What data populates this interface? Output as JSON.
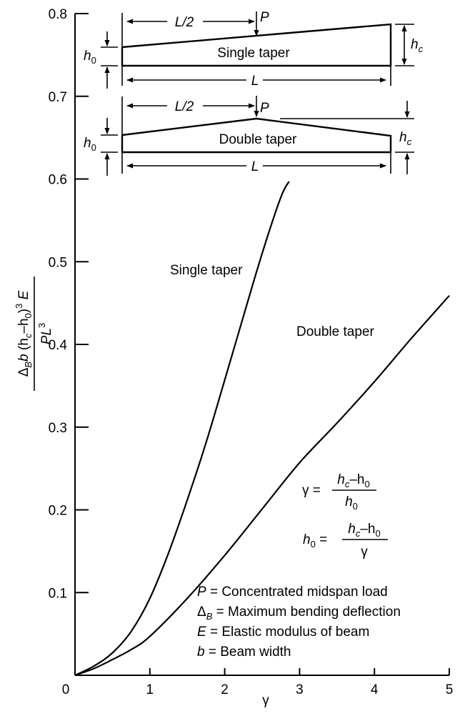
{
  "chart_data": {
    "type": "line",
    "xlabel": "γ",
    "ylabel_parts": {
      "delta": "Δ",
      "sub_B": "B",
      "b": "b",
      "paren_open": " (h",
      "sub_c": "c",
      "minus_h": "–h",
      "sub_0": "0",
      "paren_close": ")",
      "cube": "3",
      "E": " E",
      "denominator": "PL",
      "den_exp": "3"
    },
    "xlim": [
      0,
      5
    ],
    "ylim": [
      0,
      0.8
    ],
    "x_ticks": [
      0,
      1,
      2,
      3,
      4,
      5
    ],
    "x_tick_labels": [
      "0",
      "1",
      "2",
      "3",
      "4",
      "5"
    ],
    "y_ticks": [
      0.1,
      0.2,
      0.3,
      0.4,
      0.5,
      0.6,
      0.7,
      0.8
    ],
    "y_tick_labels": [
      "0.1",
      "0.2",
      "0.3",
      "0.4",
      "0.5",
      "0.6",
      "0.7",
      "0.8"
    ],
    "series": [
      {
        "name": "Single taper",
        "x": [
          0,
          0.25,
          0.5,
          0.75,
          1.0,
          1.25,
          1.5,
          1.75,
          2.0,
          2.25,
          2.5,
          2.75,
          2.86
        ],
        "y": [
          0,
          0.011,
          0.027,
          0.053,
          0.093,
          0.148,
          0.212,
          0.281,
          0.357,
          0.434,
          0.51,
          0.578,
          0.597
        ]
      },
      {
        "name": "Double taper",
        "x": [
          0,
          0.25,
          0.5,
          0.75,
          1.0,
          1.5,
          2.0,
          2.5,
          3.0,
          3.5,
          4.0,
          4.5,
          5.0
        ],
        "y": [
          0,
          0.008,
          0.019,
          0.031,
          0.047,
          0.093,
          0.145,
          0.201,
          0.257,
          0.305,
          0.355,
          0.408,
          0.459
        ]
      }
    ],
    "annotations": {
      "gamma_eq": {
        "lhs": "γ =",
        "num_h": "h",
        "num_c": "c",
        "num_minus": "–h",
        "num_0": "0",
        "den_h": "h",
        "den_0": "0"
      },
      "h0_eq": {
        "lhs_h": "h",
        "lhs_0": "0",
        "eq": " =",
        "num_h": "h",
        "num_c": "c",
        "num_minus": "–h",
        "num_0": "0",
        "den": "γ"
      },
      "legend_lines": [
        {
          "sym": "P",
          "sub": "",
          "text": " = Concentrated midspan load"
        },
        {
          "sym": "Δ",
          "sub": "B",
          "text": " = Maximum bending deflection"
        },
        {
          "sym": "E",
          "sub": "",
          "text": " = Elastic modulus of beam"
        },
        {
          "sym": "b",
          "sub": "",
          "text": " = Beam width"
        }
      ]
    },
    "insets": {
      "single": {
        "beam_label": "Single taper",
        "half_span": "L/2",
        "span": "L",
        "load": "P",
        "h0_h": "h",
        "h0_sub": "0",
        "hc_h": "h",
        "hc_sub": "c"
      },
      "double": {
        "beam_label": "Double taper",
        "half_span": "L/2",
        "span": "L",
        "load": "P",
        "h0_h": "h",
        "h0_sub": "0",
        "hc_h": "h",
        "hc_sub": "c"
      }
    }
  }
}
